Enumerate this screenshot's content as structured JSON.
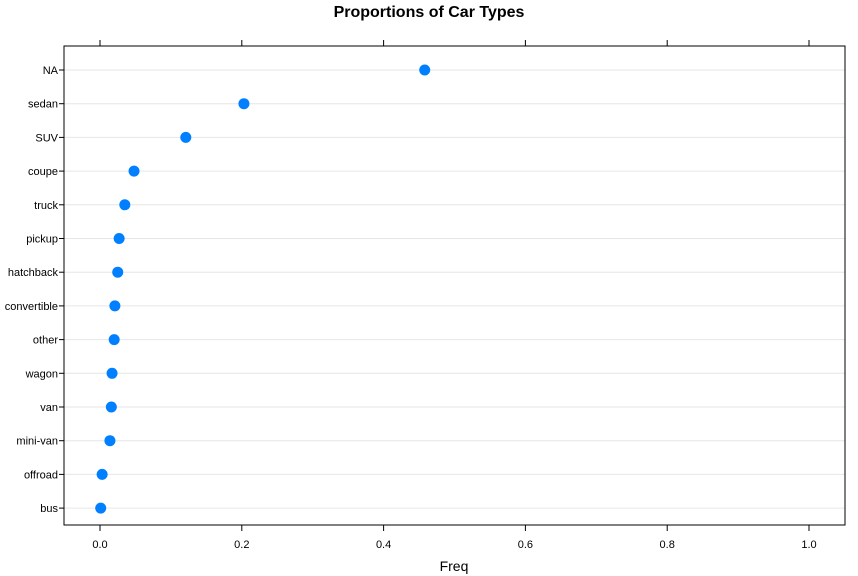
{
  "chart_data": {
    "type": "scatter",
    "title": "Proportions of Car Types",
    "xlabel": "Freq",
    "ylabel": "",
    "xlim": [
      0,
      1.0
    ],
    "xticks": [
      0.0,
      0.2,
      0.4,
      0.6,
      0.8,
      1.0
    ],
    "xtick_labels": [
      "0.0",
      "0.2",
      "0.4",
      "0.6",
      "0.8",
      "1.0"
    ],
    "grid": "horizontal",
    "point_color": "#0080ff",
    "gridline_color": "#e6e6e6",
    "categories": [
      "NA",
      "sedan",
      "SUV",
      "coupe",
      "truck",
      "pickup",
      "hatchback",
      "convertible",
      "other",
      "wagon",
      "van",
      "mini-van",
      "offroad",
      "bus"
    ],
    "values": [
      0.458,
      0.203,
      0.121,
      0.048,
      0.035,
      0.027,
      0.025,
      0.021,
      0.02,
      0.017,
      0.016,
      0.014,
      0.003,
      0.001
    ]
  }
}
